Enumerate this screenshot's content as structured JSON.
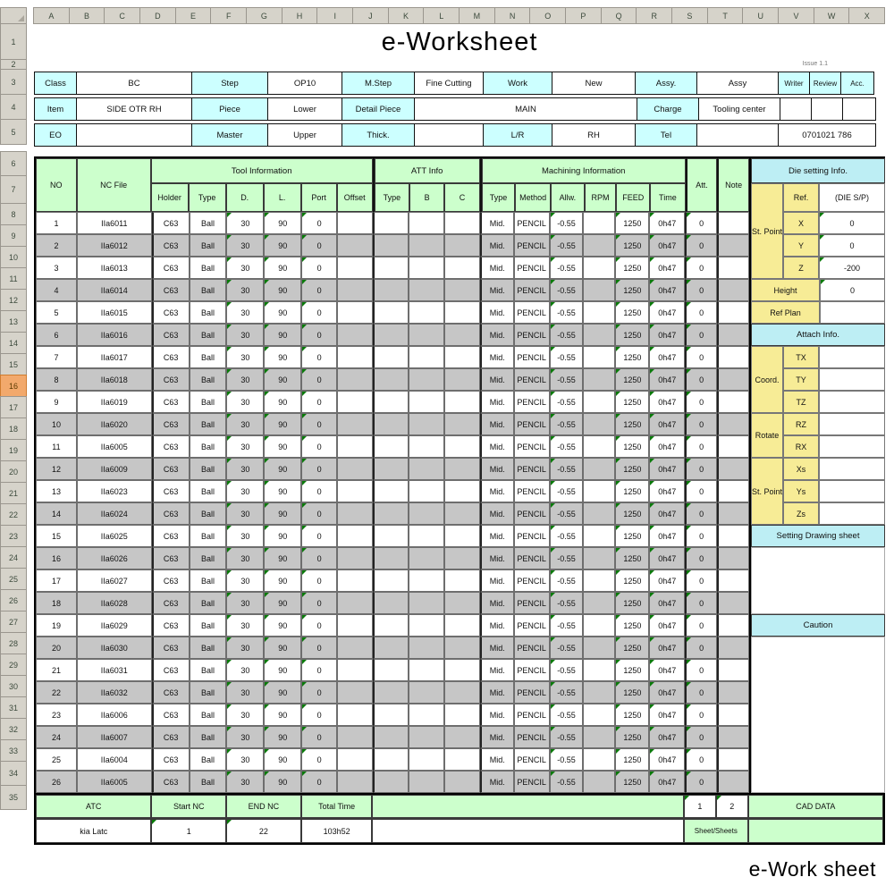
{
  "chrome": {
    "column_letters": [
      "A",
      "B",
      "C",
      "D",
      "E",
      "F",
      "G",
      "H",
      "I",
      "J",
      "K",
      "L",
      "M",
      "N",
      "O",
      "P",
      "Q",
      "R",
      "S",
      "T",
      "U",
      "V",
      "W",
      "X"
    ],
    "selected_row": "16"
  },
  "title": "e-Worksheet",
  "version_note": "Issue 1.1",
  "sheet_tab": "e-Work sheet",
  "form": {
    "class_label": "Class",
    "class_value": "BC",
    "step_label": "Step",
    "step_value": "OP10",
    "mstep_label": "M.Step",
    "mstep_value": "Fine Cutting",
    "work_label": "Work",
    "work_value": "New",
    "assy_label": "Assy.",
    "assy_value": "Assy",
    "writer_label": "Writer",
    "review_label": "Review",
    "acc_label": "Acc.",
    "item_label": "Item",
    "item_value": "SIDE OTR RH",
    "piece_label": "Piece",
    "piece_value": "Lower",
    "detail_label": "Detail Piece",
    "detail_value": "MAIN",
    "charge_label": "Charge",
    "charge_value": "Tooling center",
    "eo_label": "EO",
    "master_label": "Master",
    "master_value": "Upper",
    "thick_label": "Thick.",
    "lr_label": "L/R",
    "lr_value": "RH",
    "tel_label": "Tel",
    "tel_value": "0701021 786"
  },
  "table": {
    "headers": {
      "no": "NO",
      "nc_file": "NC File",
      "tool_info": "Tool Information",
      "holder": "Holder",
      "type": "Type",
      "d": "D.",
      "l": "L.",
      "port": "Port",
      "offset": "Offset",
      "att_info": "ATT Info",
      "att_type": "Type",
      "att_b": "B",
      "att_c": "C",
      "mach_info": "Machining Information",
      "m_type": "Type",
      "method": "Method",
      "allw": "Allw.",
      "rpm": "RPM",
      "feed": "FEED",
      "time": "Time",
      "att": "Att.",
      "note": "Note"
    },
    "col_keys": [
      "no",
      "nc_file",
      "holder",
      "type",
      "d",
      "l",
      "port",
      "offset",
      "att_type",
      "att_b",
      "att_c",
      "m_type",
      "method",
      "allw",
      "rpm",
      "feed",
      "time",
      "att",
      "note"
    ],
    "rows": [
      [
        "1",
        "IIa6011",
        "C63",
        "Ball",
        "30",
        "90",
        "0",
        "",
        "",
        "",
        "",
        "Mid.",
        "PENCIL",
        "-0.55",
        "",
        "1250",
        "0h47",
        "0",
        ""
      ],
      [
        "2",
        "IIa6012",
        "C63",
        "Ball",
        "30",
        "90",
        "0",
        "",
        "",
        "",
        "",
        "Mid.",
        "PENCIL",
        "-0.55",
        "",
        "1250",
        "0h47",
        "0",
        ""
      ],
      [
        "3",
        "IIa6013",
        "C63",
        "Ball",
        "30",
        "90",
        "0",
        "",
        "",
        "",
        "",
        "Mid.",
        "PENCIL",
        "-0.55",
        "",
        "1250",
        "0h47",
        "0",
        ""
      ],
      [
        "4",
        "IIa6014",
        "C63",
        "Ball",
        "30",
        "90",
        "0",
        "",
        "",
        "",
        "",
        "Mid.",
        "PENCIL",
        "-0.55",
        "",
        "1250",
        "0h47",
        "0",
        ""
      ],
      [
        "5",
        "IIa6015",
        "C63",
        "Ball",
        "30",
        "90",
        "0",
        "",
        "",
        "",
        "",
        "Mid.",
        "PENCIL",
        "-0.55",
        "",
        "1250",
        "0h47",
        "0",
        ""
      ],
      [
        "6",
        "IIa6016",
        "C63",
        "Ball",
        "30",
        "90",
        "0",
        "",
        "",
        "",
        "",
        "Mid.",
        "PENCIL",
        "-0.55",
        "",
        "1250",
        "0h47",
        "0",
        ""
      ],
      [
        "7",
        "IIa6017",
        "C63",
        "Ball",
        "30",
        "90",
        "0",
        "",
        "",
        "",
        "",
        "Mid.",
        "PENCIL",
        "-0.55",
        "",
        "1250",
        "0h47",
        "0",
        ""
      ],
      [
        "8",
        "IIa6018",
        "C63",
        "Ball",
        "30",
        "90",
        "0",
        "",
        "",
        "",
        "",
        "Mid.",
        "PENCIL",
        "-0.55",
        "",
        "1250",
        "0h47",
        "0",
        ""
      ],
      [
        "9",
        "IIa6019",
        "C63",
        "Ball",
        "30",
        "90",
        "0",
        "",
        "",
        "",
        "",
        "Mid.",
        "PENCIL",
        "-0.55",
        "",
        "1250",
        "0h47",
        "0",
        ""
      ],
      [
        "10",
        "IIa6020",
        "C63",
        "Ball",
        "30",
        "90",
        "0",
        "",
        "",
        "",
        "",
        "Mid.",
        "PENCIL",
        "-0.55",
        "",
        "1250",
        "0h47",
        "0",
        ""
      ],
      [
        "11",
        "IIa6005",
        "C63",
        "Ball",
        "30",
        "90",
        "0",
        "",
        "",
        "",
        "",
        "Mid.",
        "PENCIL",
        "-0.55",
        "",
        "1250",
        "0h47",
        "0",
        ""
      ],
      [
        "12",
        "IIa6009",
        "C63",
        "Ball",
        "30",
        "90",
        "0",
        "",
        "",
        "",
        "",
        "Mid.",
        "PENCIL",
        "-0.55",
        "",
        "1250",
        "0h47",
        "0",
        ""
      ],
      [
        "13",
        "IIa6023",
        "C63",
        "Ball",
        "30",
        "90",
        "0",
        "",
        "",
        "",
        "",
        "Mid.",
        "PENCIL",
        "-0.55",
        "",
        "1250",
        "0h47",
        "0",
        ""
      ],
      [
        "14",
        "IIa6024",
        "C63",
        "Ball",
        "30",
        "90",
        "0",
        "",
        "",
        "",
        "",
        "Mid.",
        "PENCIL",
        "-0.55",
        "",
        "1250",
        "0h47",
        "0",
        ""
      ],
      [
        "15",
        "IIa6025",
        "C63",
        "Ball",
        "30",
        "90",
        "0",
        "",
        "",
        "",
        "",
        "Mid.",
        "PENCIL",
        "-0.55",
        "",
        "1250",
        "0h47",
        "0",
        ""
      ],
      [
        "16",
        "IIa6026",
        "C63",
        "Ball",
        "30",
        "90",
        "0",
        "",
        "",
        "",
        "",
        "Mid.",
        "PENCIL",
        "-0.55",
        "",
        "1250",
        "0h47",
        "0",
        ""
      ],
      [
        "17",
        "IIa6027",
        "C63",
        "Ball",
        "30",
        "90",
        "0",
        "",
        "",
        "",
        "",
        "Mid.",
        "PENCIL",
        "-0.55",
        "",
        "1250",
        "0h47",
        "0",
        ""
      ],
      [
        "18",
        "IIa6028",
        "C63",
        "Ball",
        "30",
        "90",
        "0",
        "",
        "",
        "",
        "",
        "Mid.",
        "PENCIL",
        "-0.55",
        "",
        "1250",
        "0h47",
        "0",
        ""
      ],
      [
        "19",
        "IIa6029",
        "C63",
        "Ball",
        "30",
        "90",
        "0",
        "",
        "",
        "",
        "",
        "Mid.",
        "PENCIL",
        "-0.55",
        "",
        "1250",
        "0h47",
        "0",
        ""
      ],
      [
        "20",
        "IIa6030",
        "C63",
        "Ball",
        "30",
        "90",
        "0",
        "",
        "",
        "",
        "",
        "Mid.",
        "PENCIL",
        "-0.55",
        "",
        "1250",
        "0h47",
        "0",
        ""
      ],
      [
        "21",
        "IIa6031",
        "C63",
        "Ball",
        "30",
        "90",
        "0",
        "",
        "",
        "",
        "",
        "Mid.",
        "PENCIL",
        "-0.55",
        "",
        "1250",
        "0h47",
        "0",
        ""
      ],
      [
        "22",
        "IIa6032",
        "C63",
        "Ball",
        "30",
        "90",
        "0",
        "",
        "",
        "",
        "",
        "Mid.",
        "PENCIL",
        "-0.55",
        "",
        "1250",
        "0h47",
        "0",
        ""
      ],
      [
        "23",
        "IIa6006",
        "C63",
        "Ball",
        "30",
        "90",
        "0",
        "",
        "",
        "",
        "",
        "Mid.",
        "PENCIL",
        "-0.55",
        "",
        "1250",
        "0h47",
        "0",
        ""
      ],
      [
        "24",
        "IIa6007",
        "C63",
        "Ball",
        "30",
        "90",
        "0",
        "",
        "",
        "",
        "",
        "Mid.",
        "PENCIL",
        "-0.55",
        "",
        "1250",
        "0h47",
        "0",
        ""
      ],
      [
        "25",
        "IIa6004",
        "C63",
        "Ball",
        "30",
        "90",
        "0",
        "",
        "",
        "",
        "",
        "Mid.",
        "PENCIL",
        "-0.55",
        "",
        "1250",
        "0h47",
        "0",
        ""
      ],
      [
        "26",
        "IIa6005",
        "C63",
        "Ball",
        "30",
        "90",
        "0",
        "",
        "",
        "",
        "",
        "Mid.",
        "PENCIL",
        "-0.55",
        "",
        "1250",
        "0h47",
        "0",
        ""
      ]
    ]
  },
  "panel": {
    "title": "Die setting Info.",
    "st_point_label": "St. Point",
    "ref_label": "Ref.",
    "ref_value": "(DIE S/P)",
    "x_label": "X",
    "x_value": "0",
    "y_label": "Y",
    "y_value": "0",
    "z_label": "Z",
    "z_value": "-200",
    "height_label": "Height",
    "height_value": "0",
    "ref_plan_label": "Ref Plan",
    "attach_title": "Attach Info.",
    "coord_label": "Coord.",
    "tx_label": "TX",
    "ty_label": "TY",
    "tz_label": "TZ",
    "rotate_label": "Rotate",
    "rz_label": "RZ",
    "rx_label": "RX",
    "st_point2_label": "St. Point",
    "xs_label": "Xs",
    "ys_label": "Ys",
    "zs_label": "Zs",
    "setting_drawing_title": "Setting Drawing sheet",
    "caution_title": "Caution"
  },
  "footer": {
    "atc_label": "ATC",
    "atc_value": "kia Latc",
    "start_nc_label": "Start NC",
    "start_nc_value": "1",
    "end_nc_label": "END NC",
    "end_nc_value": "22",
    "total_time_label": "Total Time",
    "total_time_value": "103h52",
    "page1": "1",
    "page2": "2",
    "cad_data_label": "CAD DATA",
    "sheets_label": "Sheet/Sheets"
  }
}
